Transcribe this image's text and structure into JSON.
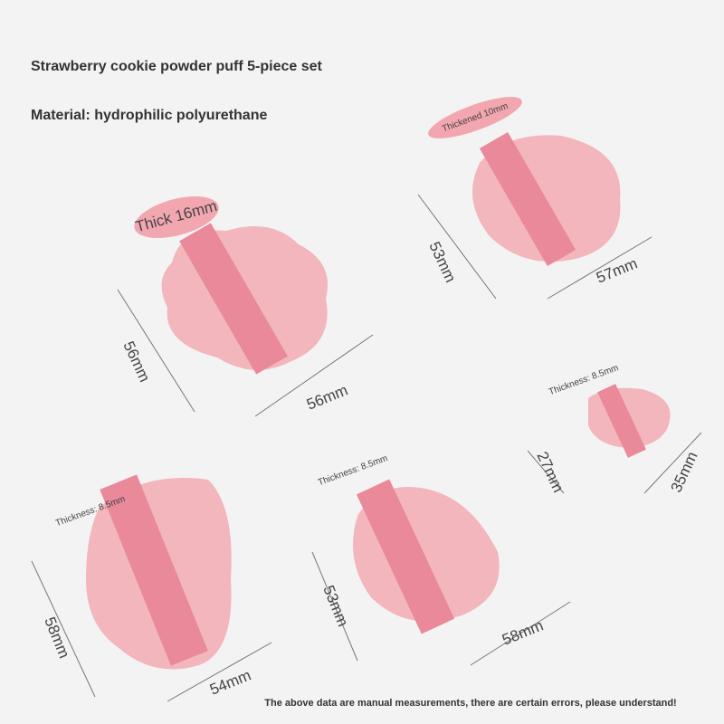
{
  "header": {
    "title": "Strawberry cookie powder puff 5-piece set",
    "material": "Material: hydrophilic polyurethane"
  },
  "puffs": [
    {
      "thickness": "Thick 16mm",
      "height": "56mm",
      "width": "56mm"
    },
    {
      "thickness": "Thickened 10mm",
      "height": "53mm",
      "width": "57mm"
    },
    {
      "thickness": "Thickness: 8.5mm",
      "height": "27mm",
      "width": "35mm"
    },
    {
      "thickness": "Thickness: 8.5mm",
      "height": "58mm",
      "width": "54mm"
    },
    {
      "thickness": "Thickness: 8.5mm",
      "height": "53mm",
      "width": "58mm"
    }
  ],
  "footer": {
    "note": "The above data are manual measurements, there are certain errors, please understand!"
  }
}
